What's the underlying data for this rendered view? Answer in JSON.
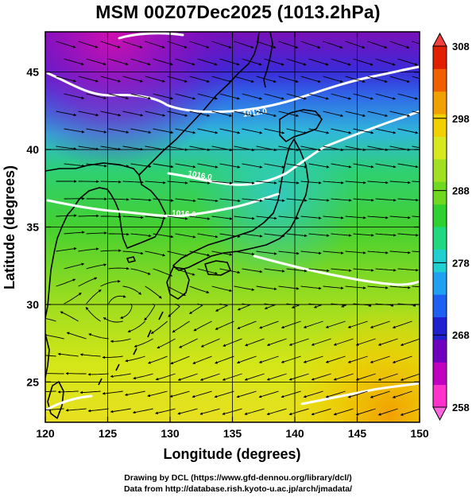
{
  "title": "MSM 00Z07Dec2025 (1013.2hPa)",
  "x_axis": {
    "label": "Longitude (degrees)",
    "min": 120,
    "max": 150,
    "ticks": [
      "120",
      "125",
      "130",
      "135",
      "140",
      "145",
      "150"
    ]
  },
  "y_axis": {
    "label": "Latitude  (degrees)",
    "min": 22.4,
    "max": 47.6,
    "ticks": [
      "25",
      "30",
      "35",
      "40",
      "45"
    ]
  },
  "colorbar": {
    "min": 258,
    "max": 308,
    "ticks": [
      "258",
      "268",
      "278",
      "288",
      "298",
      "308"
    ],
    "colors": [
      "#ff33cc",
      "#c000c0",
      "#7000c0",
      "#2020d0",
      "#2060f0",
      "#20a0f0",
      "#20d0d0",
      "#20d880",
      "#30d030",
      "#70d820",
      "#a0e020",
      "#d8e820",
      "#f0d000",
      "#f0a000",
      "#f06000",
      "#e02000"
    ]
  },
  "contour_labels": [
    "1012.0",
    "1016.0",
    "1016.0"
  ],
  "credits": [
    "Drawing by DCL (https://www.gfd-dennou.org/library/dcl/)",
    "Data from http://database.rish.kyoto-u.ac.jp/arch/jmadata/"
  ]
}
